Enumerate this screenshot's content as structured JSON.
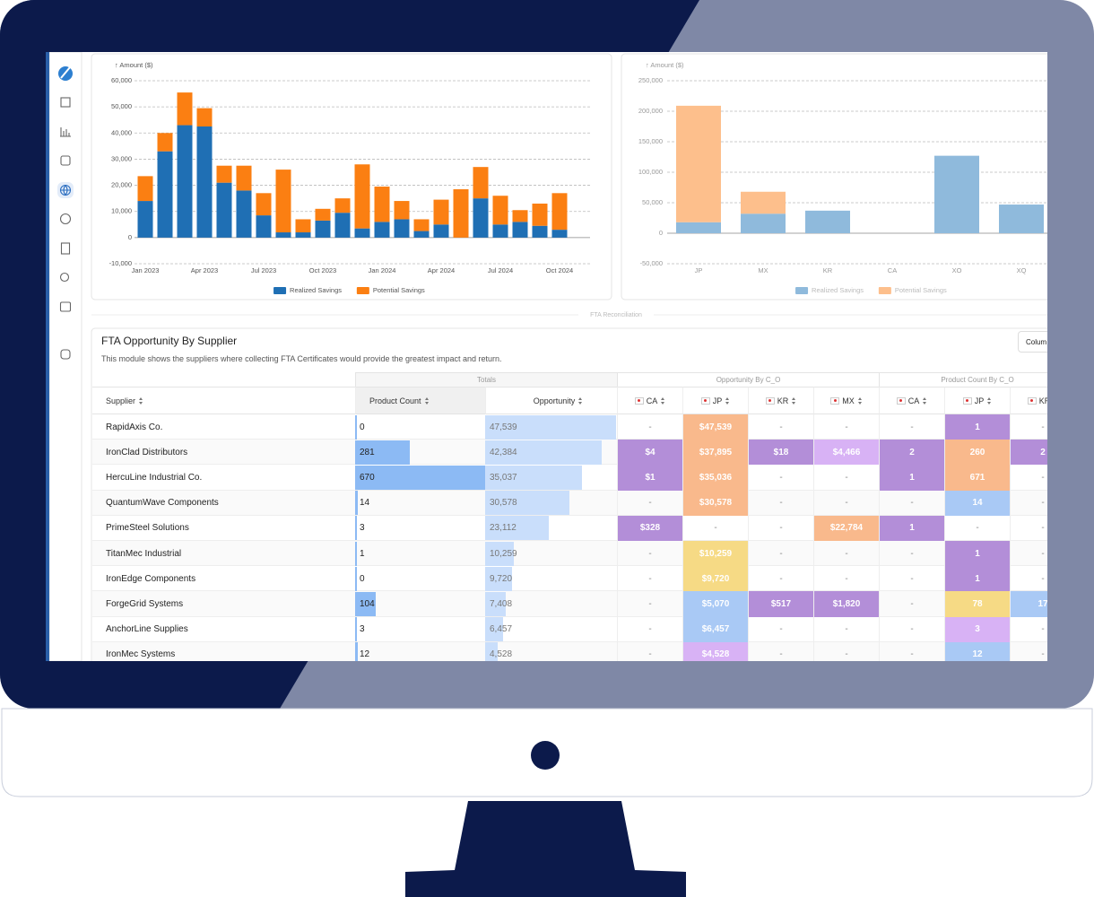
{
  "chart_data": [
    {
      "type": "bar",
      "stacked": true,
      "y_label": "↑ Amount ($)",
      "categories": [
        "Jan 2023",
        null,
        null,
        "Apr 2023",
        null,
        null,
        "Jul 2023",
        null,
        null,
        "Oct 2023",
        null,
        null,
        "Jan 2024",
        null,
        null,
        "Apr 2024",
        null,
        null,
        "Jul 2024",
        null,
        null,
        "Oct 2024"
      ],
      "series": [
        {
          "name": "Realized Savings",
          "color": "#1f6fb4",
          "values": [
            14000,
            33000,
            43000,
            42500,
            21000,
            18000,
            8500,
            2000,
            2000,
            6500,
            9500,
            3500,
            6000,
            7000,
            2500,
            5000,
            0,
            15000,
            5000,
            6000,
            4500,
            3000
          ]
        },
        {
          "name": "Potential Savings",
          "color": "#fb7f12",
          "values": [
            9500,
            7000,
            12500,
            7000,
            6500,
            9500,
            8500,
            24000,
            5000,
            4500,
            5500,
            24500,
            13500,
            7000,
            4500,
            9500,
            18500,
            12000,
            11000,
            4500,
            8500,
            14000
          ]
        }
      ],
      "ylim": [
        -10000,
        60000
      ],
      "yticks": [
        {
          "value": -10000,
          "label": "-10,000"
        },
        0,
        {
          "value": 10000,
          "label": "10,000"
        },
        {
          "value": 20000,
          "label": "20,000"
        },
        {
          "value": 30000,
          "label": "30,000"
        },
        {
          "value": 40000,
          "label": "40,000"
        },
        {
          "value": 50000,
          "label": "50,000"
        },
        {
          "value": 60000,
          "label": "60,000"
        }
      ],
      "grid": true,
      "legend": "bottom"
    },
    {
      "type": "bar",
      "stacked": true,
      "y_label": "↑ Amount ($)",
      "categories": [
        "JP",
        "MX",
        "KR",
        "CA",
        "XO",
        "XQ"
      ],
      "series": [
        {
          "name": "Realized Savings",
          "color": "#8fbadc",
          "values": [
            18000,
            32000,
            37000,
            0,
            127000,
            47000
          ]
        },
        {
          "name": "Potential Savings",
          "color": "#fdbf8c",
          "values": [
            191000,
            36000,
            0,
            0,
            0,
            0
          ]
        }
      ],
      "ylim": [
        -50000,
        250000
      ],
      "yticks": [
        {
          "value": -50000,
          "label": "-50,000"
        },
        0,
        {
          "value": 50000,
          "label": "50,000"
        },
        {
          "value": 100000,
          "label": "100,000"
        },
        {
          "value": 150000,
          "label": "150,000"
        },
        {
          "value": 200000,
          "label": "200,000"
        },
        {
          "value": 250000,
          "label": "250,000"
        }
      ],
      "grid": true,
      "legend": "bottom"
    }
  ],
  "divider": "FTA Reconciliation",
  "table": {
    "title": "FTA Opportunity By Supplier",
    "description": "This module shows the suppliers where collecting FTA Certificates would provide the greatest impact and return.",
    "button": "Colum",
    "groups": [
      "Totals",
      "Opportunity By C_O",
      "Product Count By C_O"
    ],
    "columns": [
      "Supplier",
      "Product Count",
      "Opportunity",
      "CA",
      "JP",
      "KR",
      "MX",
      "CA",
      "JP",
      "KR"
    ],
    "rows": [
      {
        "supplier": "RapidAxis Co.",
        "product_count": 0,
        "opportunity": {
          "value": 47539,
          "label": "47,539"
        },
        "cells": [
          "-",
          "$47,539",
          "-",
          "-",
          "-",
          "1",
          "-"
        ],
        "cell_colors": [
          null,
          "#f9b98c",
          null,
          null,
          null,
          "#b38ed8",
          null
        ]
      },
      {
        "supplier": "IronClad Distributors",
        "product_count": 281,
        "opportunity": {
          "value": 42384,
          "label": "42,384"
        },
        "cells": [
          "$4",
          "$37,895",
          "$18",
          "$4,466",
          "2",
          "260",
          "2"
        ],
        "cell_colors": [
          "#b38ed8",
          "#f9b98c",
          "#b38ed8",
          "#d8b2f5",
          "#b38ed8",
          "#f9b98c",
          "#b38ed8"
        ]
      },
      {
        "supplier": "HercuLine Industrial Co.",
        "product_count": 670,
        "opportunity": {
          "value": 35037,
          "label": "35,037"
        },
        "cells": [
          "$1",
          "$35,036",
          "-",
          "-",
          "1",
          "671",
          "-"
        ],
        "cell_colors": [
          "#b38ed8",
          "#f9b98c",
          null,
          null,
          "#b38ed8",
          "#f9b98c",
          null
        ]
      },
      {
        "supplier": "QuantumWave Components",
        "product_count": 14,
        "opportunity": {
          "value": 30578,
          "label": "30,578"
        },
        "cells": [
          "-",
          "$30,578",
          "-",
          "-",
          "-",
          "14",
          "-"
        ],
        "cell_colors": [
          null,
          "#f9b98c",
          null,
          null,
          null,
          "#a9c9f5",
          null
        ]
      },
      {
        "supplier": "PrimeSteel Solutions",
        "product_count": 3,
        "opportunity": {
          "value": 23112,
          "label": "23,112"
        },
        "cells": [
          "$328",
          "-",
          "-",
          "$22,784",
          "1",
          "-",
          "-"
        ],
        "cell_colors": [
          "#b38ed8",
          null,
          null,
          "#f9b98c",
          "#b38ed8",
          null,
          null
        ]
      },
      {
        "supplier": "TitanMec Industrial",
        "product_count": 1,
        "opportunity": {
          "value": 10259,
          "label": "10,259"
        },
        "cells": [
          "-",
          "$10,259",
          "-",
          "-",
          "-",
          "1",
          "-"
        ],
        "cell_colors": [
          null,
          "#f6da85",
          null,
          null,
          null,
          "#b38ed8",
          null
        ]
      },
      {
        "supplier": "IronEdge Components",
        "product_count": 0,
        "opportunity": {
          "value": 9720,
          "label": "9,720"
        },
        "cells": [
          "-",
          "$9,720",
          "-",
          "-",
          "-",
          "1",
          "-"
        ],
        "cell_colors": [
          null,
          "#f6da85",
          null,
          null,
          null,
          "#b38ed8",
          null
        ]
      },
      {
        "supplier": "ForgeGrid Systems",
        "product_count": 104,
        "opportunity": {
          "value": 7408,
          "label": "7,408"
        },
        "cells": [
          "-",
          "$5,070",
          "$517",
          "$1,820",
          "-",
          "78",
          "17"
        ],
        "cell_colors": [
          null,
          "#a9c9f5",
          "#b38ed8",
          "#b38ed8",
          null,
          "#f6da85",
          "#a9c9f5"
        ]
      },
      {
        "supplier": "AnchorLine Supplies",
        "product_count": 3,
        "opportunity": {
          "value": 6457,
          "label": "6,457"
        },
        "cells": [
          "-",
          "$6,457",
          "-",
          "-",
          "-",
          "3",
          "-"
        ],
        "cell_colors": [
          null,
          "#a9c9f5",
          null,
          null,
          null,
          "#d8b2f5",
          null
        ]
      },
      {
        "supplier": "IronMec Systems",
        "product_count": 12,
        "opportunity": {
          "value": 4528,
          "label": "4,528"
        },
        "cells": [
          "-",
          "$4,528",
          "-",
          "-",
          "-",
          "12",
          "-"
        ],
        "cell_colors": [
          null,
          "#d8b2f5",
          null,
          null,
          null,
          "#a9c9f5",
          null
        ]
      }
    ]
  }
}
